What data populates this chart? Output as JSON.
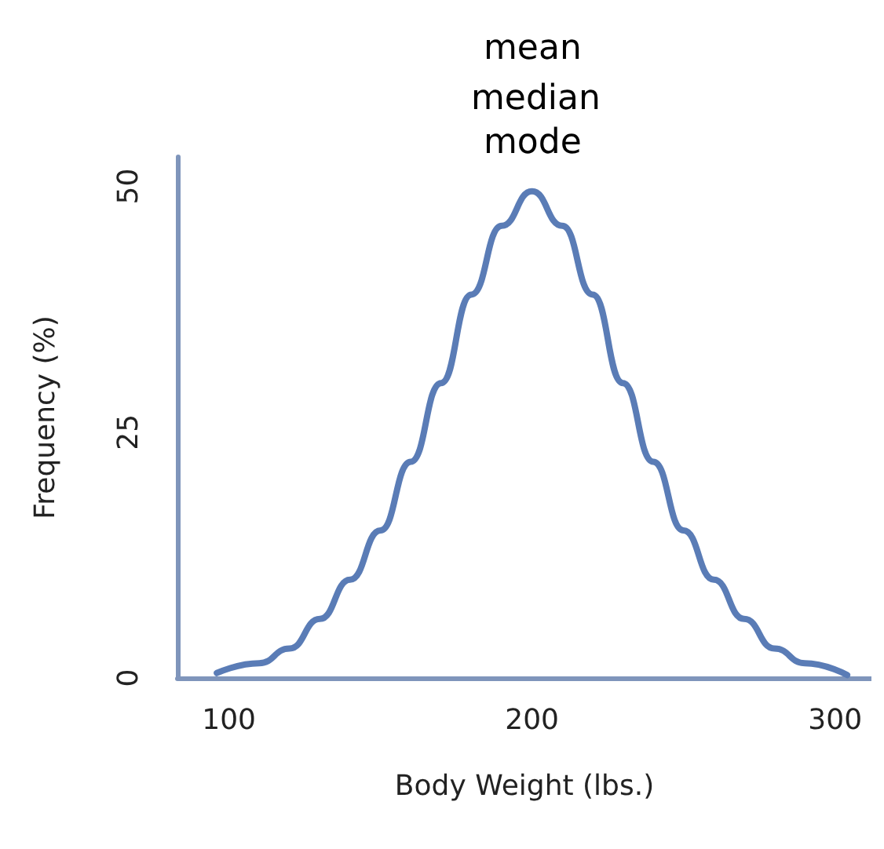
{
  "chart_data": {
    "type": "line",
    "xlabel": "Body Weight (lbs.)",
    "ylabel": "Frequency (%)",
    "annotations": [
      "mean",
      "median",
      "mode"
    ],
    "x": [
      96,
      110,
      120,
      130,
      140,
      150,
      160,
      170,
      180,
      190,
      200,
      210,
      220,
      230,
      240,
      250,
      260,
      270,
      280,
      290,
      304
    ],
    "series": [
      {
        "color": "#5a7cb6",
        "values": [
          0.5,
          1.5,
          3,
          6,
          10,
          15,
          22,
          30,
          39,
          46,
          49.5,
          46,
          39,
          30,
          22,
          15,
          10,
          6,
          3,
          1.5,
          0.3
        ]
      }
    ],
    "xlim": [
      83,
      312
    ],
    "xticks": [
      100,
      200,
      300
    ],
    "ylim": [
      0,
      53
    ],
    "yticks": [
      0,
      25,
      50
    ],
    "grid": false,
    "marker": "none",
    "line_style": "solid"
  }
}
